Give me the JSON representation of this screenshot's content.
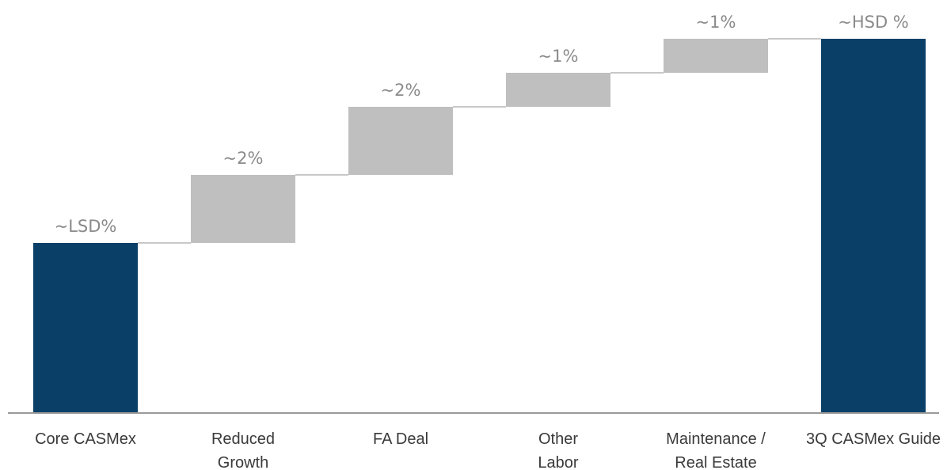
{
  "chart_data": {
    "type": "bar",
    "subtype": "waterfall",
    "title": "",
    "xlabel": "",
    "ylabel": "",
    "ylim": [
      0,
      12
    ],
    "grid": false,
    "legend": "none",
    "categories": [
      [
        "Core CASMex"
      ],
      [
        "Reduced",
        "Growth"
      ],
      [
        "FA Deal"
      ],
      [
        "Other",
        "Labor"
      ],
      [
        "Maintenance /",
        "Real Estate"
      ],
      [
        "3Q CASMex Guide"
      ]
    ],
    "bars": [
      {
        "kind": "total",
        "base": 0,
        "value": 5,
        "label": "~LSD%"
      },
      {
        "kind": "increase",
        "base": 5,
        "value": 2,
        "label": "~2%"
      },
      {
        "kind": "increase",
        "base": 7,
        "value": 2,
        "label": "~2%"
      },
      {
        "kind": "increase",
        "base": 9,
        "value": 1,
        "label": "~1%"
      },
      {
        "kind": "increase",
        "base": 10,
        "value": 1,
        "label": "~1%"
      },
      {
        "kind": "total",
        "base": 0,
        "value": 11,
        "label": "~HSD %"
      }
    ],
    "colors": {
      "total": "#0a4068",
      "increase": "#bfbfbf",
      "connector": "#c8c8c8",
      "axis": "#9a9a9a"
    }
  }
}
